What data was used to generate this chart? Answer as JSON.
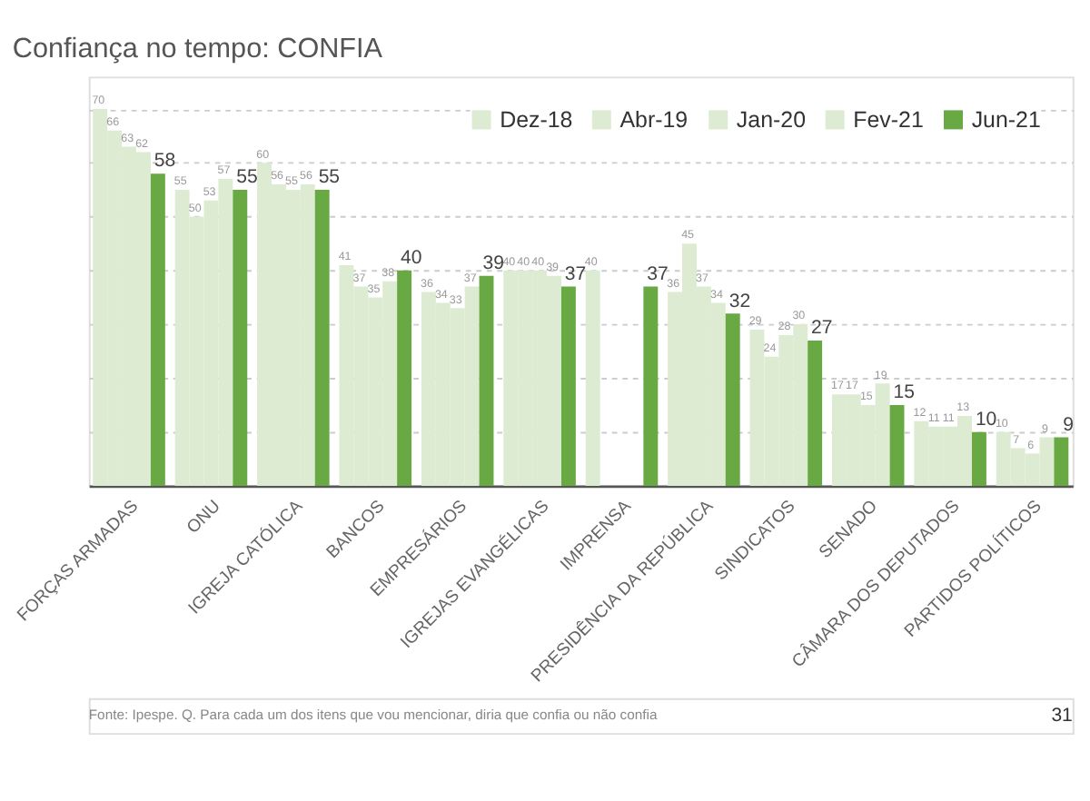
{
  "chart_data": {
    "type": "bar",
    "title": "Confiança no tempo: CONFIA",
    "categories": [
      "FORÇAS ARMADAS",
      "ONU",
      "IGREJA CATÓLICA",
      "BANCOS",
      "EMPRESÁRIOS",
      "IGREJAS EVANGÉLICAS",
      "IMPRENSA",
      "PRESIDÊNCIA DA REPÚBLICA",
      "SINDICATOS",
      "SENADO",
      "CÂMARA DOS DEPUTADOS",
      "PARTIDOS POLÍTICOS"
    ],
    "series": [
      {
        "name": "Dez-18",
        "color": "#dcebd2",
        "values": [
          70,
          55,
          60,
          41,
          36,
          40,
          40,
          36,
          29,
          17,
          12,
          10
        ]
      },
      {
        "name": "Abr-19",
        "color": "#dcebd2",
        "values": [
          66,
          50,
          56,
          37,
          34,
          40,
          null,
          45,
          24,
          17,
          11,
          7
        ]
      },
      {
        "name": "Jan-20",
        "color": "#dcebd2",
        "values": [
          63,
          53,
          55,
          35,
          33,
          40,
          null,
          37,
          28,
          15,
          11,
          6
        ]
      },
      {
        "name": "Fev-21",
        "color": "#dcebd2",
        "values": [
          62,
          57,
          56,
          38,
          37,
          39,
          null,
          34,
          30,
          19,
          13,
          9
        ]
      },
      {
        "name": "Jun-21",
        "color": "#69a944",
        "values": [
          58,
          55,
          55,
          40,
          39,
          37,
          37,
          32,
          27,
          15,
          10,
          9
        ]
      }
    ],
    "ylim": [
      0,
      76
    ],
    "tick_labels": "x",
    "grid": "y",
    "data_labels": true,
    "legend": "top right",
    "annotations": [
      "Fonte: Ipespe. Q. Para cada um dos itens que vou mencionar, diria que confia ou não confia",
      "31"
    ]
  }
}
